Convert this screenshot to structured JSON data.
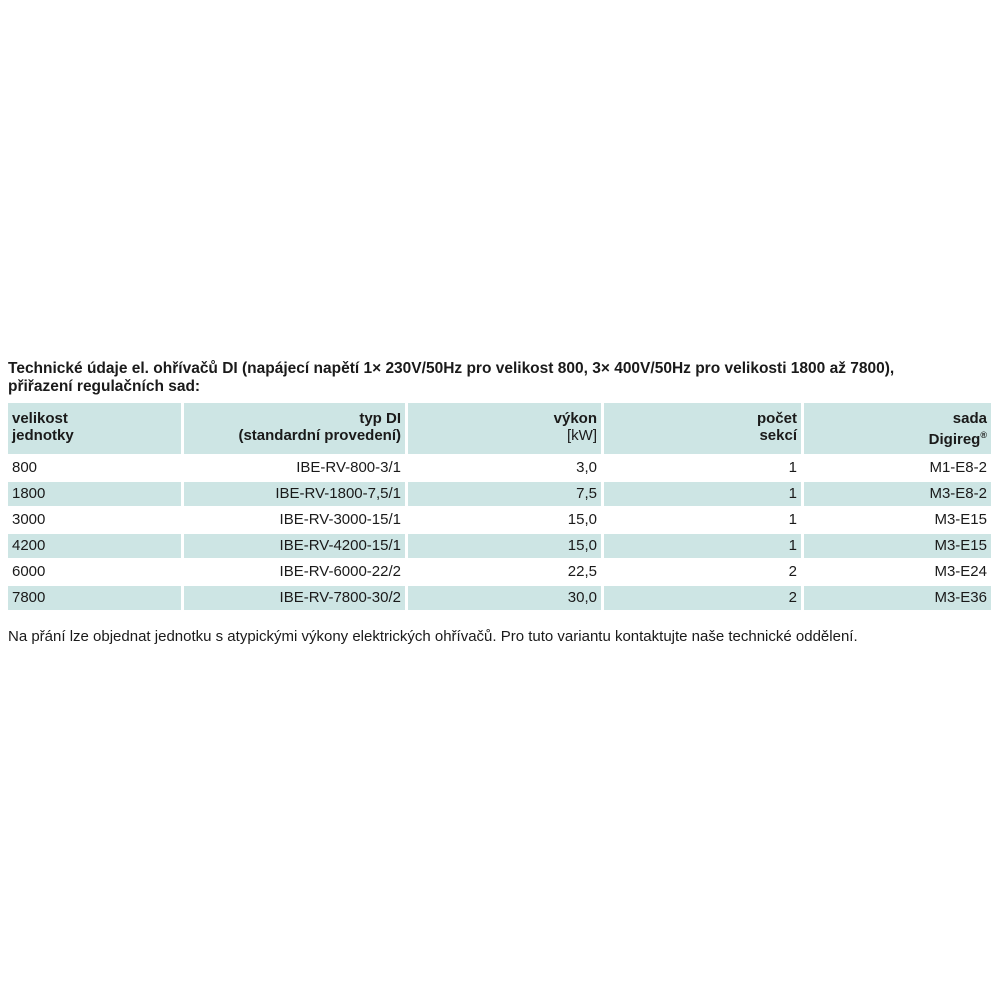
{
  "title": {
    "line1": "Technické údaje el. ohřívačů DI (napájecí napětí 1× 230V/50Hz pro velikost 800, 3× 400V/50Hz pro velikosti 1800 až 7800),",
    "line2": "přiřazení regulačních sad:"
  },
  "table": {
    "headers": {
      "size": [
        "velikost",
        "jednotky"
      ],
      "type": [
        "typ DI",
        "(standardní provedení)"
      ],
      "power": [
        "výkon",
        "[kW]"
      ],
      "sections": [
        "počet",
        "sekcí"
      ],
      "set": [
        "sada",
        "Digireg",
        "®"
      ]
    },
    "rows": [
      [
        "800",
        "IBE-RV-800-3/1",
        "3,0",
        "1",
        "M1-E8-2"
      ],
      [
        "1800",
        "IBE-RV-1800-7,5/1",
        "7,5",
        "1",
        "M3-E8-2"
      ],
      [
        "3000",
        "IBE-RV-3000-15/1",
        "15,0",
        "1",
        "M3-E15"
      ],
      [
        "4200",
        "IBE-RV-4200-15/1",
        "15,0",
        "1",
        "M3-E15"
      ],
      [
        "6000",
        "IBE-RV-6000-22/2",
        "22,5",
        "2",
        "M3-E24"
      ],
      [
        "7800",
        "IBE-RV-7800-30/2",
        "30,0",
        "2",
        "M3-E36"
      ]
    ]
  },
  "note": "Na přání lze objednat jednotku s atypickými výkony elektrických ohřívačů. Pro tuto variantu kontaktujte naše technické oddělení.",
  "colors": {
    "row_shade": "#cde5e4",
    "text": "#1a1a1a"
  }
}
